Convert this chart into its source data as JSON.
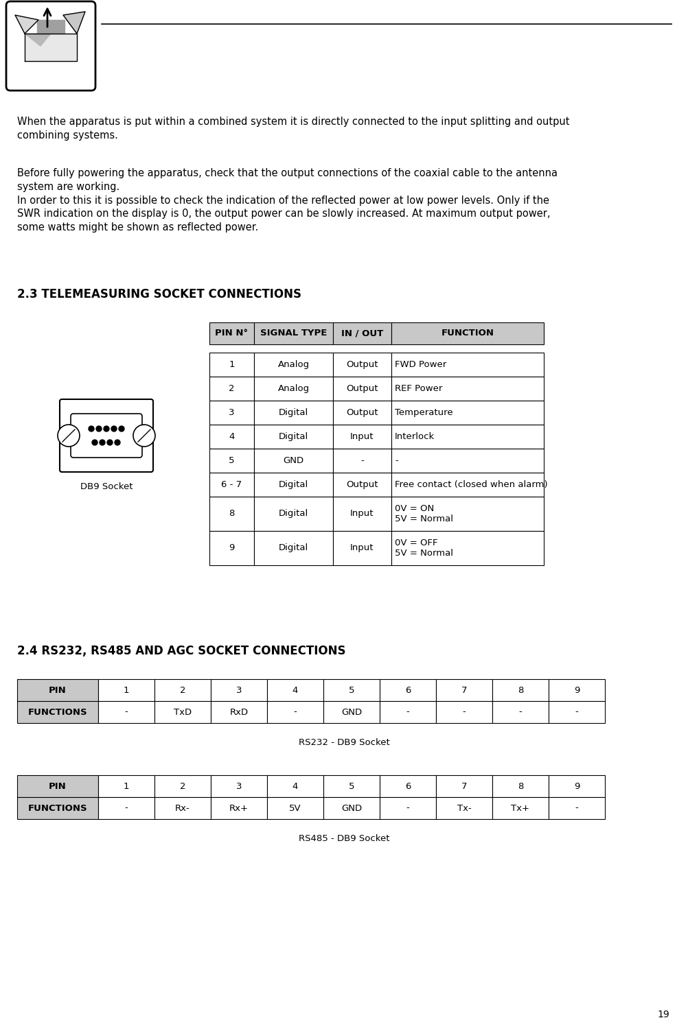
{
  "page_number": "19",
  "bg_color": "#ffffff",
  "intro_text_1": "When the apparatus is put within a combined system it is directly connected to the input splitting and output\ncombining systems.",
  "intro_text_2": "Before fully powering the apparatus, check that the output connections of the coaxial cable to the antenna\nsystem are working.\nIn order to this it is possible to check the indication of the reflected power at low power levels. Only if the\nSWR indication on the display is 0, the output power can be slowly increased. At maximum output power,\nsome watts might be shown as reflected power.",
  "section_23_title": "2.3 TELEMEASURING SOCKET CONNECTIONS",
  "section_24_title": "2.4 RS232, RS485 AND AGC SOCKET CONNECTIONS",
  "table1_header": [
    "PIN N°",
    "SIGNAL TYPE",
    "IN / OUT",
    "FUNCTION"
  ],
  "table1_rows": [
    [
      "1",
      "Analog",
      "Output",
      "FWD Power"
    ],
    [
      "2",
      "Analog",
      "Output",
      "REF Power"
    ],
    [
      "3",
      "Digital",
      "Output",
      "Temperature"
    ],
    [
      "4",
      "Digital",
      "Input",
      "Interlock"
    ],
    [
      "5",
      "GND",
      "-",
      "-"
    ],
    [
      "6 - 7",
      "Digital",
      "Output",
      "Free contact (closed when alarm)"
    ],
    [
      "8",
      "Digital",
      "Input",
      "0V = ON\n5V = Normal"
    ],
    [
      "9",
      "Digital",
      "Input",
      "0V = OFF\n5V = Normal"
    ]
  ],
  "table2_header": [
    "PIN",
    "1",
    "2",
    "3",
    "4",
    "5",
    "6",
    "7",
    "8",
    "9"
  ],
  "table2_row": [
    "FUNCTIONS",
    "-",
    "TxD",
    "RxD",
    "-",
    "GND",
    "-",
    "-",
    "-",
    "-"
  ],
  "table2_caption": "RS232 - DB9 Socket",
  "table3_header": [
    "PIN",
    "1",
    "2",
    "3",
    "4",
    "5",
    "6",
    "7",
    "8",
    "9"
  ],
  "table3_row": [
    "FUNCTIONS",
    "-",
    "Rx-",
    "Rx+",
    "5V",
    "GND",
    "-",
    "Tx-",
    "Tx+",
    "-"
  ],
  "table3_caption": "RS485 - DB9 Socket",
  "db9_label": "DB9 Socket",
  "header_color": "#c8c8c8"
}
